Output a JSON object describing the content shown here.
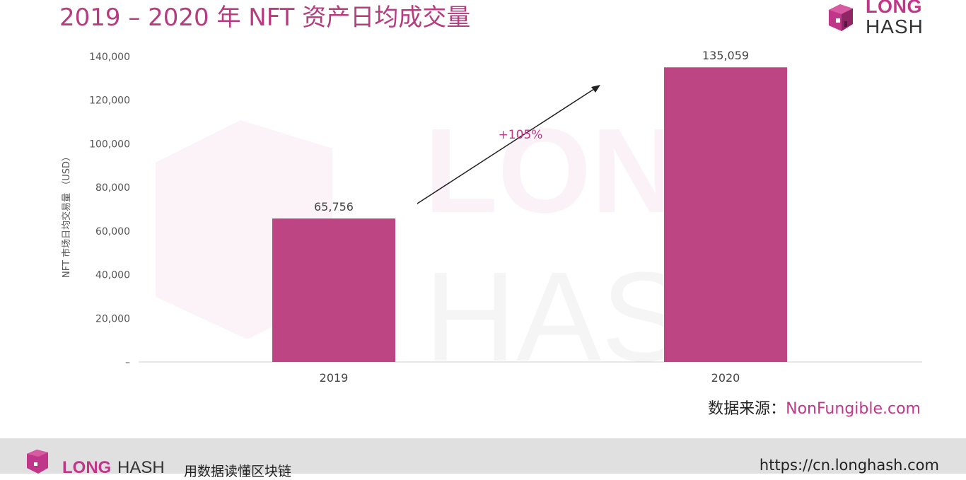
{
  "title": "2019 – 2020 年 NFT 资产日均成交量",
  "brand": {
    "top": "LONG",
    "bottom": "HASH"
  },
  "colors": {
    "accent": "#c0378a",
    "bar": "#bd4584",
    "text": "#555555"
  },
  "chart_data": {
    "type": "bar",
    "categories": [
      "2019",
      "2020"
    ],
    "values": [
      65756,
      135059
    ],
    "value_labels": [
      "65,756",
      "135,059"
    ],
    "ylabel": "NFT 市场日均交易量 （USD）",
    "xlabel": "",
    "ylim": [
      0,
      140000
    ],
    "yticks": [
      0,
      20000,
      40000,
      60000,
      80000,
      100000,
      120000,
      140000
    ],
    "ytick_labels": [
      "–",
      "20,000",
      "40,000",
      "60,000",
      "80,000",
      "100,000",
      "120,000",
      "140,000"
    ],
    "annotation": "+105%",
    "grid": false,
    "legend": "none"
  },
  "source": {
    "label": "数据来源：",
    "link": "NonFungible.com"
  },
  "footer": {
    "logo_top": "LONG",
    "logo_bottom": "HASH",
    "tagline": "用数据读懂区块链",
    "url": "https://cn.longhash.com"
  }
}
